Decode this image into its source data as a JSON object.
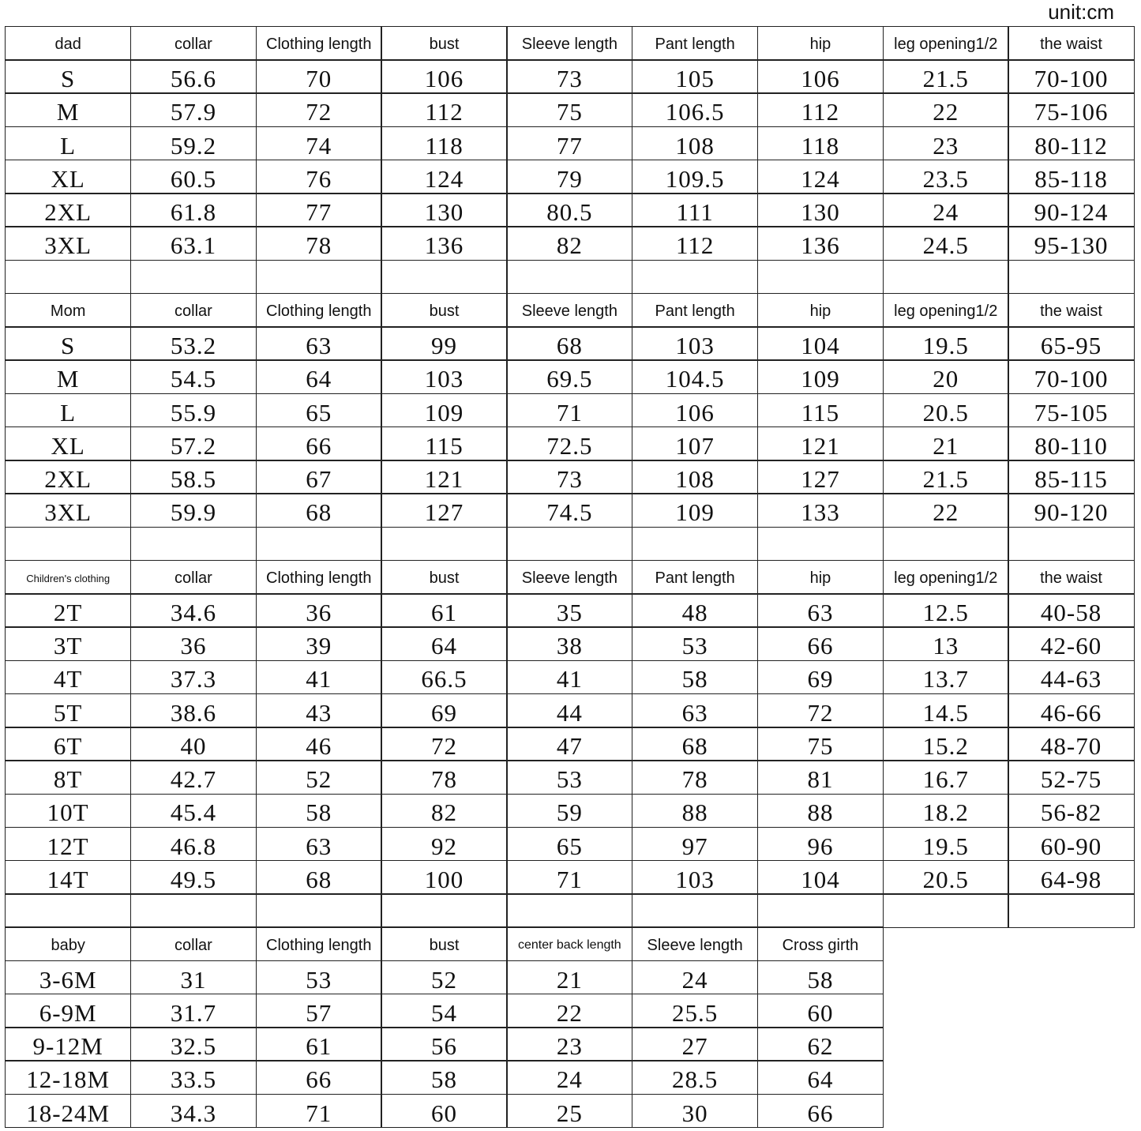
{
  "unit": "unit:cm",
  "sections": [
    {
      "headers": [
        "dad",
        "collar",
        "Clothing length",
        "bust",
        "Sleeve length",
        "Pant length",
        "hip",
        "leg opening1/2",
        "the waist"
      ],
      "rows": [
        [
          "S",
          "56.6",
          "70",
          "106",
          "73",
          "105",
          "106",
          "21.5",
          "70-100"
        ],
        [
          "M",
          "57.9",
          "72",
          "112",
          "75",
          "106.5",
          "112",
          "22",
          "75-106"
        ],
        [
          "L",
          "59.2",
          "74",
          "118",
          "77",
          "108",
          "118",
          "23",
          "80-112"
        ],
        [
          "XL",
          "60.5",
          "76",
          "124",
          "79",
          "109.5",
          "124",
          "23.5",
          "85-118"
        ],
        [
          "2XL",
          "61.8",
          "77",
          "130",
          "80.5",
          "111",
          "130",
          "24",
          "90-124"
        ],
        [
          "3XL",
          "63.1",
          "78",
          "136",
          "82",
          "112",
          "136",
          "24.5",
          "95-130"
        ]
      ]
    },
    {
      "headers": [
        "Mom",
        "collar",
        "Clothing length",
        "bust",
        "Sleeve length",
        "Pant length",
        "hip",
        "leg opening1/2",
        "the waist"
      ],
      "rows": [
        [
          "S",
          "53.2",
          "63",
          "99",
          "68",
          "103",
          "104",
          "19.5",
          "65-95"
        ],
        [
          "M",
          "54.5",
          "64",
          "103",
          "69.5",
          "104.5",
          "109",
          "20",
          "70-100"
        ],
        [
          "L",
          "55.9",
          "65",
          "109",
          "71",
          "106",
          "115",
          "20.5",
          "75-105"
        ],
        [
          "XL",
          "57.2",
          "66",
          "115",
          "72.5",
          "107",
          "121",
          "21",
          "80-110"
        ],
        [
          "2XL",
          "58.5",
          "67",
          "121",
          "73",
          "108",
          "127",
          "21.5",
          "85-115"
        ],
        [
          "3XL",
          "59.9",
          "68",
          "127",
          "74.5",
          "109",
          "133",
          "22",
          "90-120"
        ]
      ]
    },
    {
      "headers": [
        "Children's clothing",
        "collar",
        "Clothing length",
        "bust",
        "Sleeve length",
        "Pant length",
        "hip",
        "leg opening1/2",
        "the waist"
      ],
      "rows": [
        [
          "2T",
          "34.6",
          "36",
          "61",
          "35",
          "48",
          "63",
          "12.5",
          "40-58"
        ],
        [
          "3T",
          "36",
          "39",
          "64",
          "38",
          "53",
          "66",
          "13",
          "42-60"
        ],
        [
          "4T",
          "37.3",
          "41",
          "66.5",
          "41",
          "58",
          "69",
          "13.7",
          "44-63"
        ],
        [
          "5T",
          "38.6",
          "43",
          "69",
          "44",
          "63",
          "72",
          "14.5",
          "46-66"
        ],
        [
          "6T",
          "40",
          "46",
          "72",
          "47",
          "68",
          "75",
          "15.2",
          "48-70"
        ],
        [
          "8T",
          "42.7",
          "52",
          "78",
          "53",
          "78",
          "81",
          "16.7",
          "52-75"
        ],
        [
          "10T",
          "45.4",
          "58",
          "82",
          "59",
          "88",
          "88",
          "18.2",
          "56-82"
        ],
        [
          "12T",
          "46.8",
          "63",
          "92",
          "65",
          "97",
          "96",
          "19.5",
          "60-90"
        ],
        [
          "14T",
          "49.5",
          "68",
          "100",
          "71",
          "103",
          "104",
          "20.5",
          "64-98"
        ]
      ]
    },
    {
      "headers": [
        "baby",
        "collar",
        "Clothing length",
        "bust",
        "center back length",
        "Sleeve length",
        "Cross girth"
      ],
      "rows": [
        [
          "3-6M",
          "31",
          "53",
          "52",
          "21",
          "24",
          "58"
        ],
        [
          "6-9M",
          "31.7",
          "57",
          "54",
          "22",
          "25.5",
          "60"
        ],
        [
          "9-12M",
          "32.5",
          "61",
          "56",
          "23",
          "27",
          "62"
        ],
        [
          "12-18M",
          "33.5",
          "66",
          "58",
          "24",
          "28.5",
          "64"
        ],
        [
          "18-24M",
          "34.3",
          "71",
          "60",
          "25",
          "30",
          "66"
        ]
      ]
    }
  ]
}
